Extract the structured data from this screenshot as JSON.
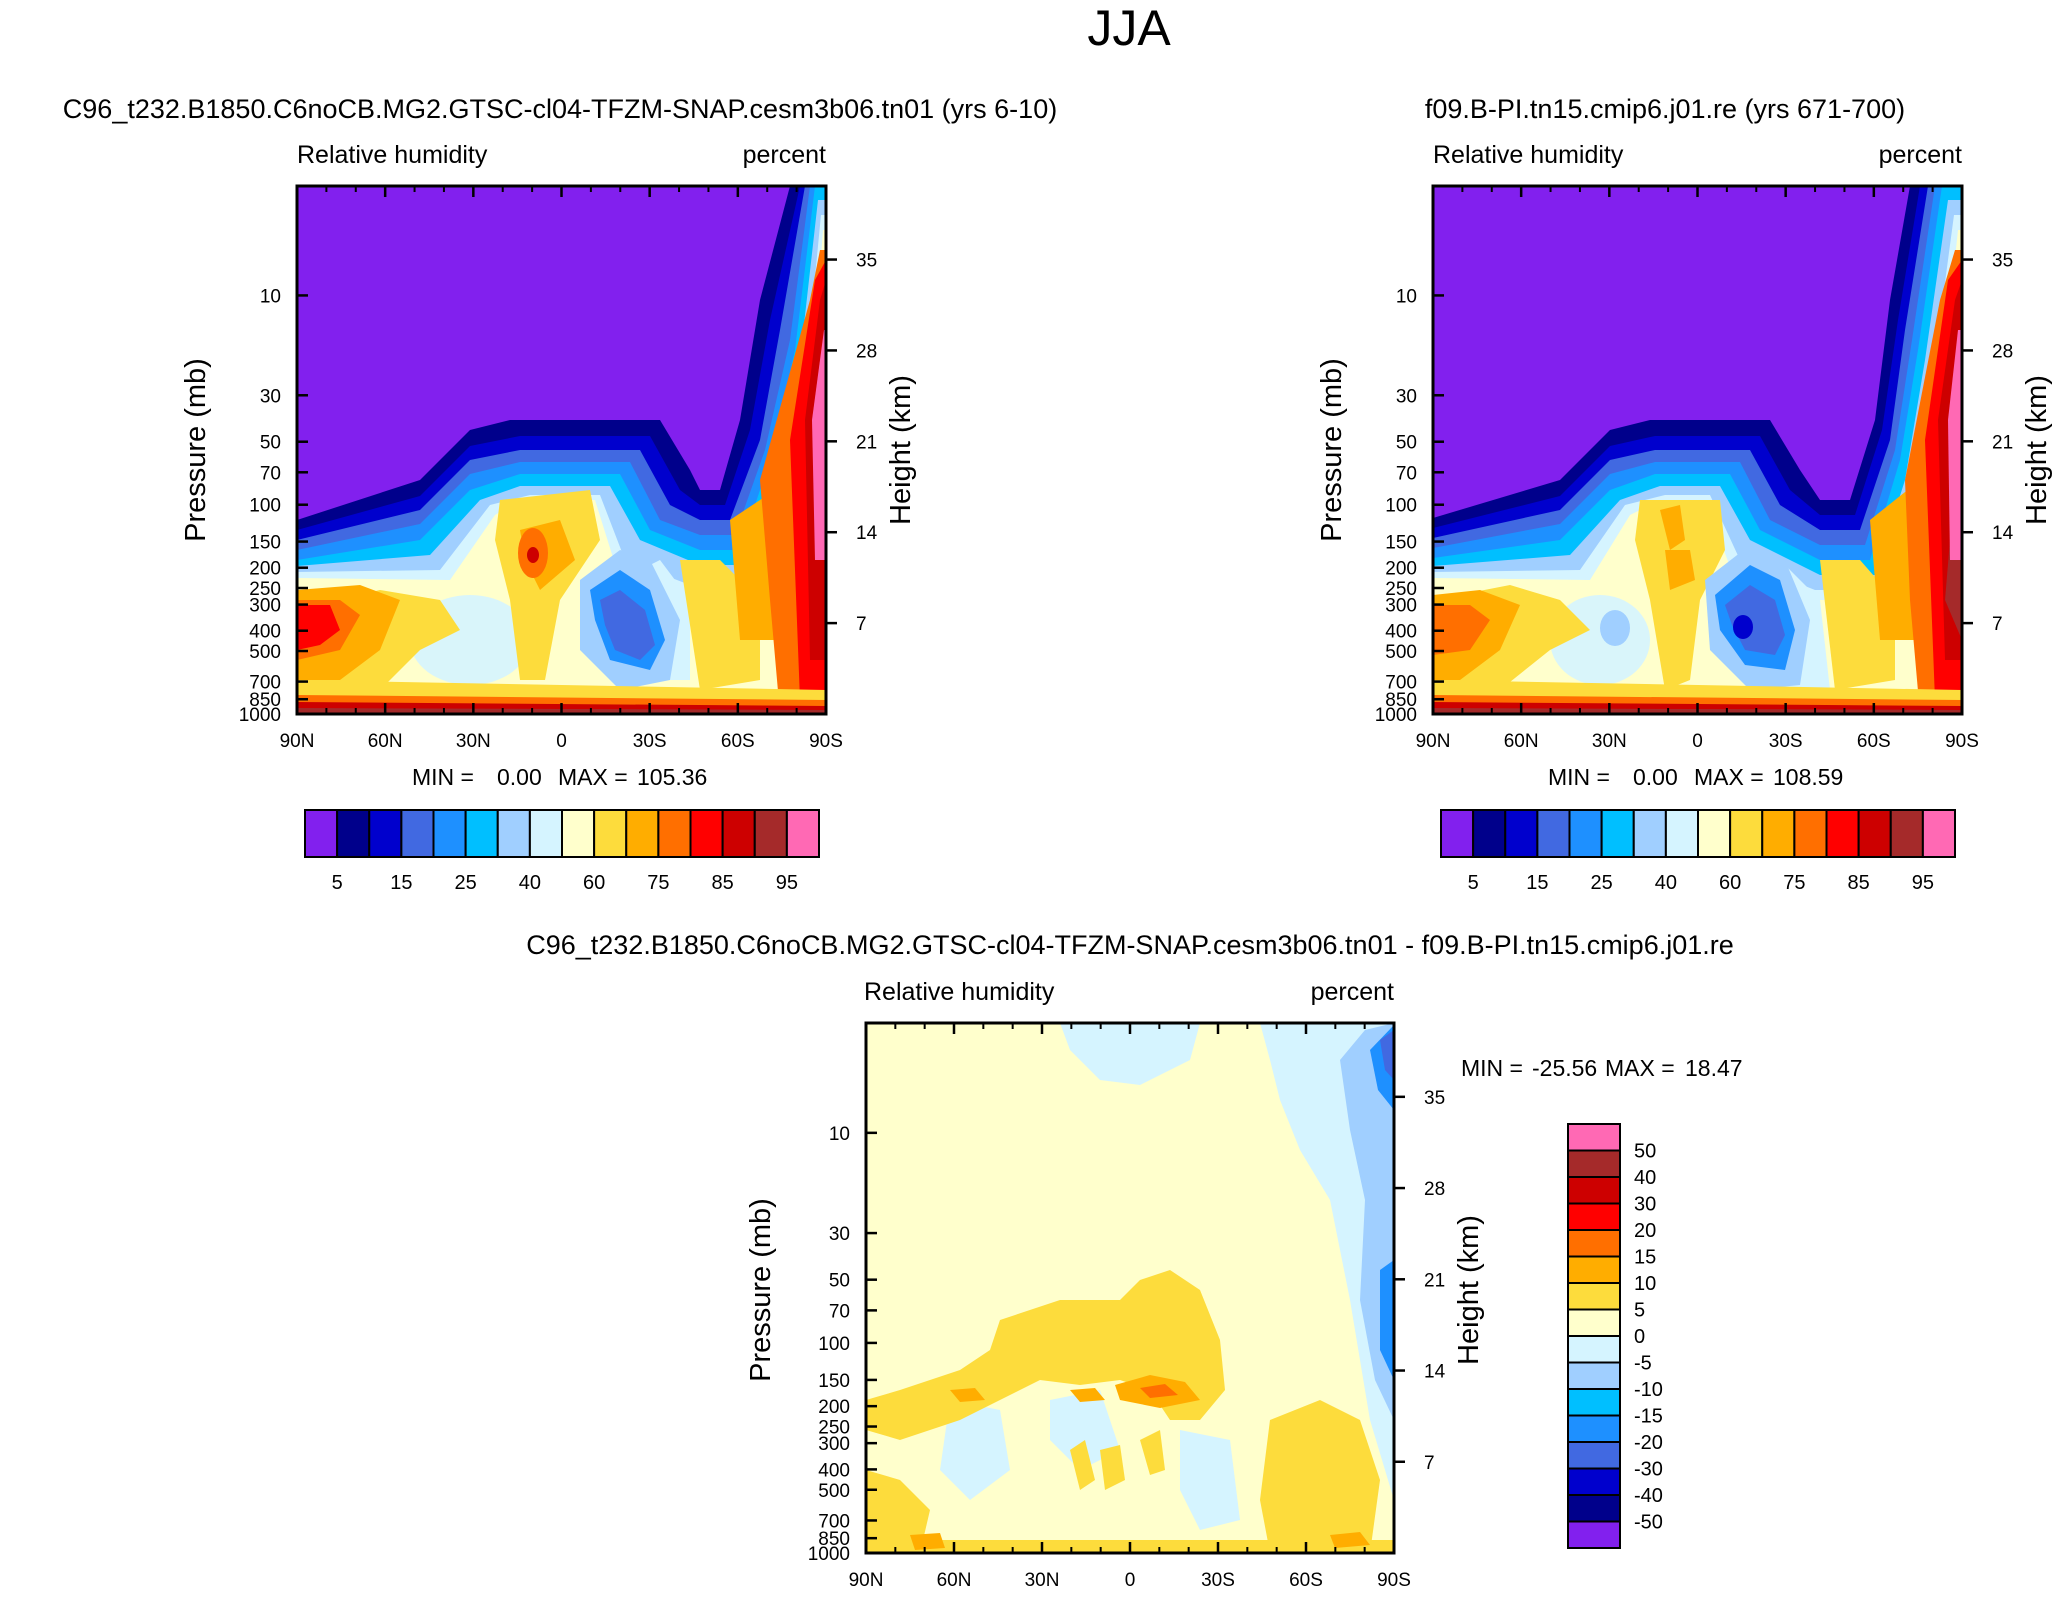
{
  "page_title": "JJA",
  "chart_data": [
    {
      "type": "heatmap",
      "id": "left",
      "title": "C96_t232.B1850.C6noCB.MG2.GTSC-cl04-TFZM-SNAP.cesm3b06.tn01 (yrs 6-10)",
      "variable_label": "Relative humidity",
      "units_label": "percent",
      "ylabel": "Pressure (mb)",
      "y2label": "Height (km)",
      "x_ticks": [
        "90N",
        "60N",
        "30N",
        "0",
        "30S",
        "60S",
        "90S"
      ],
      "y_ticks": [
        "10",
        "30",
        "50",
        "70",
        "100",
        "150",
        "200",
        "250",
        "300",
        "400",
        "500",
        "700",
        "850",
        "1000"
      ],
      "y2_ticks": [
        "35",
        "28",
        "21",
        "14",
        "7"
      ],
      "stats": {
        "min_label": "MIN =",
        "min": "0.00",
        "max_label": "MAX =",
        "max": "105.36"
      },
      "colorbar_labels": [
        "5",
        "15",
        "25",
        "40",
        "60",
        "75",
        "85",
        "95"
      ],
      "colors": [
        "#8220ee",
        "#00008b",
        "#0000cd",
        "#4169e1",
        "#1e90ff",
        "#00bfff",
        "#a0cfff",
        "#d5f4ff",
        "#ffffcc",
        "#fddc3c",
        "#ffad00",
        "#ff6f00",
        "#ff0000",
        "#cd0000",
        "#a52a2a",
        "#ff69b4"
      ]
    },
    {
      "type": "heatmap",
      "id": "right",
      "title": "f09.B-PI.tn15.cmip6.j01.re (yrs 671-700)",
      "variable_label": "Relative humidity",
      "units_label": "percent",
      "ylabel": "Pressure (mb)",
      "y2label": "Height (km)",
      "x_ticks": [
        "90N",
        "60N",
        "30N",
        "0",
        "30S",
        "60S",
        "90S"
      ],
      "y_ticks": [
        "10",
        "30",
        "50",
        "70",
        "100",
        "150",
        "200",
        "250",
        "300",
        "400",
        "500",
        "700",
        "850",
        "1000"
      ],
      "y2_ticks": [
        "35",
        "28",
        "21",
        "14",
        "7"
      ],
      "stats": {
        "min_label": "MIN =",
        "min": "0.00",
        "max_label": "MAX =",
        "max": "108.59"
      },
      "colorbar_labels": [
        "5",
        "15",
        "25",
        "40",
        "60",
        "75",
        "85",
        "95"
      ],
      "colors": [
        "#8220ee",
        "#00008b",
        "#0000cd",
        "#4169e1",
        "#1e90ff",
        "#00bfff",
        "#a0cfff",
        "#d5f4ff",
        "#ffffcc",
        "#fddc3c",
        "#ffad00",
        "#ff6f00",
        "#ff0000",
        "#cd0000",
        "#a52a2a",
        "#ff69b4"
      ]
    },
    {
      "type": "heatmap",
      "id": "diff",
      "title": "C96_t232.B1850.C6noCB.MG2.GTSC-cl04-TFZM-SNAP.cesm3b06.tn01 - f09.B-PI.tn15.cmip6.j01.re",
      "variable_label": "Relative humidity",
      "units_label": "percent",
      "ylabel": "Pressure (mb)",
      "y2label": "Height (km)",
      "x_ticks": [
        "90N",
        "60N",
        "30N",
        "0",
        "30S",
        "60S",
        "90S"
      ],
      "y_ticks": [
        "10",
        "30",
        "50",
        "70",
        "100",
        "150",
        "200",
        "250",
        "300",
        "400",
        "500",
        "700",
        "850",
        "1000"
      ],
      "y2_ticks": [
        "35",
        "28",
        "21",
        "14",
        "7"
      ],
      "stats": {
        "min_label": "MIN =",
        "min": "-25.56",
        "max_label": "MAX =",
        "max": "18.47"
      },
      "colorbar_labels": [
        "50",
        "40",
        "30",
        "20",
        "15",
        "10",
        "5",
        "0",
        "-5",
        "-10",
        "-15",
        "-20",
        "-30",
        "-40",
        "-50"
      ],
      "colors": [
        "#ff69b4",
        "#a52a2a",
        "#cd0000",
        "#ff0000",
        "#ff6f00",
        "#ffad00",
        "#fddc3c",
        "#ffffcc",
        "#d5f4ff",
        "#a0cfff",
        "#00bfff",
        "#1e90ff",
        "#4169e1",
        "#0000cd",
        "#00008b",
        "#8220ee"
      ]
    }
  ]
}
